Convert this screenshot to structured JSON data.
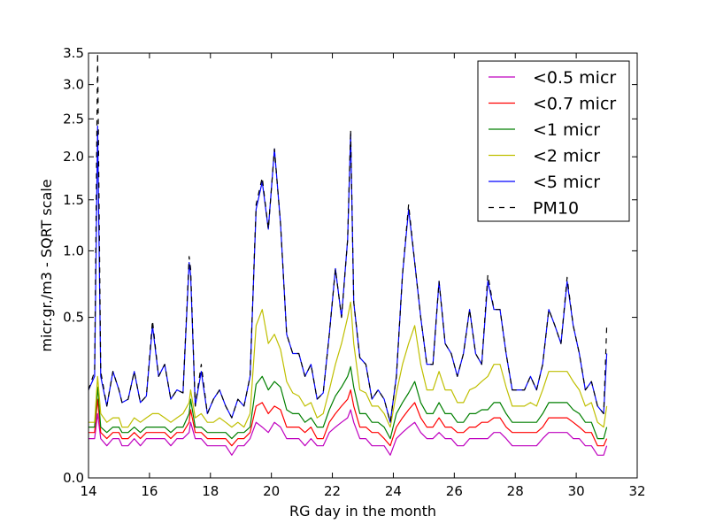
{
  "chart_data": {
    "type": "line",
    "title": "",
    "xlabel": "RG day in the month",
    "ylabel": "micr.gr./m3 - SQRT scale",
    "y_scale": "sqrt",
    "xlim": [
      14,
      32
    ],
    "ylim": [
      0.0,
      3.5
    ],
    "x_ticks": [
      14,
      16,
      18,
      20,
      22,
      24,
      26,
      28,
      30,
      32
    ],
    "x_tick_labels": [
      "14",
      "16",
      "18",
      "20",
      "22",
      "24",
      "26",
      "28",
      "30",
      "32"
    ],
    "y_ticks": [
      0.0,
      0.5,
      1.0,
      1.5,
      2.0,
      2.5,
      3.0,
      3.5
    ],
    "y_tick_labels": [
      "0.0",
      "0.5",
      "1.0",
      "1.5",
      "2.0",
      "2.5",
      "3.0",
      "3.5"
    ],
    "grid": false,
    "legend_position": "top-right",
    "x": [
      14.0,
      14.2,
      14.3,
      14.4,
      14.6,
      14.8,
      15.0,
      15.1,
      15.3,
      15.5,
      15.7,
      15.9,
      16.1,
      16.3,
      16.5,
      16.7,
      16.9,
      17.1,
      17.3,
      17.35,
      17.5,
      17.7,
      17.9,
      18.1,
      18.3,
      18.5,
      18.7,
      18.9,
      19.1,
      19.3,
      19.5,
      19.7,
      19.9,
      20.1,
      20.3,
      20.5,
      20.7,
      20.9,
      21.1,
      21.3,
      21.5,
      21.7,
      21.9,
      22.1,
      22.3,
      22.5,
      22.6,
      22.7,
      22.9,
      23.1,
      23.3,
      23.5,
      23.7,
      23.9,
      24.1,
      24.3,
      24.5,
      24.7,
      24.9,
      25.1,
      25.3,
      25.5,
      25.7,
      25.9,
      26.1,
      26.3,
      26.5,
      26.7,
      26.9,
      27.1,
      27.3,
      27.5,
      27.7,
      27.9,
      28.1,
      28.3,
      28.5,
      28.7,
      28.9,
      29.1,
      29.3,
      29.5,
      29.7,
      29.9,
      30.1,
      30.3,
      30.5,
      30.7,
      30.9,
      31.0
    ],
    "series": [
      {
        "name": "<0.5 micr",
        "color": "#bf00bf",
        "dash": "solid",
        "values": [
          0.03,
          0.03,
          0.08,
          0.03,
          0.02,
          0.03,
          0.03,
          0.02,
          0.02,
          0.03,
          0.02,
          0.03,
          0.03,
          0.03,
          0.03,
          0.02,
          0.03,
          0.03,
          0.04,
          0.06,
          0.03,
          0.03,
          0.02,
          0.02,
          0.02,
          0.02,
          0.01,
          0.02,
          0.02,
          0.03,
          0.06,
          0.05,
          0.04,
          0.06,
          0.05,
          0.03,
          0.03,
          0.03,
          0.02,
          0.03,
          0.02,
          0.02,
          0.04,
          0.05,
          0.06,
          0.07,
          0.09,
          0.06,
          0.03,
          0.03,
          0.02,
          0.02,
          0.02,
          0.01,
          0.03,
          0.04,
          0.05,
          0.06,
          0.04,
          0.03,
          0.03,
          0.04,
          0.03,
          0.03,
          0.02,
          0.02,
          0.03,
          0.03,
          0.03,
          0.03,
          0.04,
          0.04,
          0.03,
          0.02,
          0.02,
          0.02,
          0.02,
          0.02,
          0.03,
          0.04,
          0.04,
          0.04,
          0.04,
          0.03,
          0.03,
          0.02,
          0.02,
          0.01,
          0.01,
          0.02
        ]
      },
      {
        "name": "<0.7 micr",
        "color": "#ff0000",
        "dash": "solid",
        "values": [
          0.04,
          0.04,
          0.12,
          0.04,
          0.03,
          0.04,
          0.04,
          0.03,
          0.03,
          0.04,
          0.03,
          0.04,
          0.04,
          0.04,
          0.04,
          0.03,
          0.04,
          0.04,
          0.06,
          0.09,
          0.04,
          0.04,
          0.03,
          0.03,
          0.03,
          0.03,
          0.02,
          0.03,
          0.03,
          0.04,
          0.1,
          0.11,
          0.08,
          0.1,
          0.09,
          0.05,
          0.05,
          0.05,
          0.04,
          0.05,
          0.03,
          0.03,
          0.06,
          0.08,
          0.1,
          0.12,
          0.15,
          0.1,
          0.05,
          0.05,
          0.04,
          0.04,
          0.03,
          0.02,
          0.05,
          0.07,
          0.09,
          0.11,
          0.07,
          0.05,
          0.05,
          0.07,
          0.05,
          0.05,
          0.04,
          0.04,
          0.05,
          0.05,
          0.06,
          0.06,
          0.07,
          0.07,
          0.05,
          0.04,
          0.04,
          0.04,
          0.04,
          0.04,
          0.05,
          0.07,
          0.07,
          0.07,
          0.07,
          0.06,
          0.05,
          0.04,
          0.04,
          0.02,
          0.02,
          0.03
        ]
      },
      {
        "name": "<1 micr",
        "color": "#007f00",
        "dash": "solid",
        "values": [
          0.05,
          0.05,
          0.16,
          0.05,
          0.04,
          0.05,
          0.05,
          0.04,
          0.04,
          0.05,
          0.04,
          0.05,
          0.05,
          0.05,
          0.05,
          0.04,
          0.05,
          0.05,
          0.08,
          0.12,
          0.05,
          0.05,
          0.04,
          0.04,
          0.04,
          0.04,
          0.03,
          0.04,
          0.04,
          0.05,
          0.17,
          0.2,
          0.15,
          0.18,
          0.16,
          0.09,
          0.08,
          0.08,
          0.06,
          0.07,
          0.05,
          0.05,
          0.09,
          0.13,
          0.16,
          0.2,
          0.24,
          0.16,
          0.08,
          0.08,
          0.06,
          0.06,
          0.05,
          0.03,
          0.08,
          0.11,
          0.14,
          0.18,
          0.11,
          0.08,
          0.08,
          0.11,
          0.08,
          0.08,
          0.06,
          0.06,
          0.08,
          0.08,
          0.09,
          0.09,
          0.11,
          0.11,
          0.08,
          0.06,
          0.06,
          0.06,
          0.06,
          0.06,
          0.08,
          0.11,
          0.11,
          0.11,
          0.11,
          0.09,
          0.08,
          0.06,
          0.06,
          0.03,
          0.03,
          0.05
        ]
      },
      {
        "name": "<2 micr",
        "color": "#bfbf00",
        "dash": "solid",
        "values": [
          0.06,
          0.06,
          0.2,
          0.08,
          0.06,
          0.07,
          0.07,
          0.05,
          0.05,
          0.07,
          0.06,
          0.07,
          0.08,
          0.08,
          0.07,
          0.06,
          0.07,
          0.08,
          0.11,
          0.15,
          0.07,
          0.08,
          0.06,
          0.06,
          0.07,
          0.06,
          0.05,
          0.06,
          0.05,
          0.08,
          0.45,
          0.55,
          0.35,
          0.4,
          0.32,
          0.18,
          0.14,
          0.13,
          0.1,
          0.11,
          0.07,
          0.08,
          0.15,
          0.25,
          0.35,
          0.5,
          0.6,
          0.35,
          0.15,
          0.14,
          0.1,
          0.1,
          0.08,
          0.05,
          0.14,
          0.25,
          0.35,
          0.45,
          0.25,
          0.15,
          0.15,
          0.22,
          0.15,
          0.15,
          0.11,
          0.11,
          0.15,
          0.16,
          0.18,
          0.2,
          0.25,
          0.25,
          0.16,
          0.1,
          0.1,
          0.1,
          0.11,
          0.1,
          0.15,
          0.22,
          0.22,
          0.22,
          0.22,
          0.18,
          0.15,
          0.1,
          0.11,
          0.06,
          0.05,
          0.1
        ]
      },
      {
        "name": "<5 micr",
        "color": "#0000ff",
        "dash": "solid",
        "values": [
          0.15,
          0.2,
          2.4,
          0.2,
          0.1,
          0.22,
          0.15,
          0.11,
          0.12,
          0.22,
          0.11,
          0.13,
          0.45,
          0.2,
          0.25,
          0.12,
          0.15,
          0.14,
          0.9,
          0.8,
          0.1,
          0.22,
          0.08,
          0.12,
          0.15,
          0.1,
          0.07,
          0.12,
          0.1,
          0.2,
          1.4,
          1.7,
          1.2,
          2.1,
          1.25,
          0.4,
          0.3,
          0.3,
          0.2,
          0.25,
          0.12,
          0.14,
          0.4,
          0.85,
          0.5,
          1.1,
          2.3,
          0.6,
          0.28,
          0.25,
          0.12,
          0.15,
          0.12,
          0.06,
          0.2,
          0.8,
          1.4,
          0.9,
          0.5,
          0.25,
          0.25,
          0.75,
          0.35,
          0.3,
          0.2,
          0.3,
          0.55,
          0.3,
          0.25,
          0.75,
          0.55,
          0.55,
          0.3,
          0.15,
          0.15,
          0.15,
          0.2,
          0.15,
          0.25,
          0.55,
          0.45,
          0.35,
          0.75,
          0.45,
          0.3,
          0.15,
          0.18,
          0.1,
          0.08,
          0.3
        ]
      },
      {
        "name": "PM10",
        "color": "#000000",
        "dash": "dashed",
        "values": [
          0.15,
          0.22,
          3.5,
          0.22,
          0.1,
          0.22,
          0.15,
          0.11,
          0.12,
          0.22,
          0.11,
          0.13,
          0.48,
          0.2,
          0.25,
          0.12,
          0.15,
          0.14,
          0.95,
          0.85,
          0.1,
          0.25,
          0.08,
          0.12,
          0.15,
          0.1,
          0.07,
          0.12,
          0.1,
          0.2,
          1.45,
          1.75,
          1.2,
          2.1,
          1.25,
          0.4,
          0.3,
          0.3,
          0.2,
          0.25,
          0.12,
          0.14,
          0.4,
          0.85,
          0.5,
          1.1,
          2.35,
          0.6,
          0.28,
          0.25,
          0.12,
          0.15,
          0.12,
          0.06,
          0.2,
          0.8,
          1.45,
          0.9,
          0.5,
          0.25,
          0.25,
          0.75,
          0.35,
          0.3,
          0.2,
          0.3,
          0.55,
          0.3,
          0.25,
          0.8,
          0.55,
          0.55,
          0.3,
          0.15,
          0.15,
          0.15,
          0.2,
          0.15,
          0.25,
          0.55,
          0.45,
          0.35,
          0.78,
          0.45,
          0.3,
          0.15,
          0.18,
          0.1,
          0.08,
          0.45
        ]
      }
    ]
  }
}
